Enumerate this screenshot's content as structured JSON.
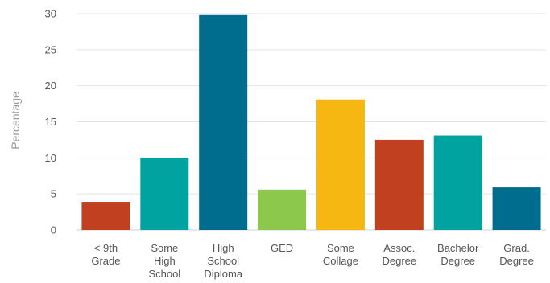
{
  "chart_data": {
    "type": "bar",
    "categories": [
      [
        "< 9th",
        "Grade"
      ],
      [
        "Some",
        "High",
        "School"
      ],
      [
        "High",
        "School",
        "Diploma"
      ],
      [
        "GED"
      ],
      [
        "Some",
        "Collage"
      ],
      [
        "Assoc.",
        "Degree"
      ],
      [
        "Bachelor",
        "Degree"
      ],
      [
        "Grad.",
        "Degree"
      ]
    ],
    "values": [
      3.9,
      10.0,
      29.8,
      5.6,
      18.1,
      12.5,
      13.1,
      5.9
    ],
    "colors": [
      "#c1401f",
      "#00a3a0",
      "#006d8f",
      "#8cc84b",
      "#f7b713",
      "#c1401f",
      "#00a3a0",
      "#006d8f"
    ],
    "ylabel": "Percentage",
    "ylim": [
      0,
      30
    ],
    "yticks": [
      0,
      5,
      10,
      15,
      20,
      25,
      30
    ],
    "grid": true,
    "legend": "none"
  }
}
